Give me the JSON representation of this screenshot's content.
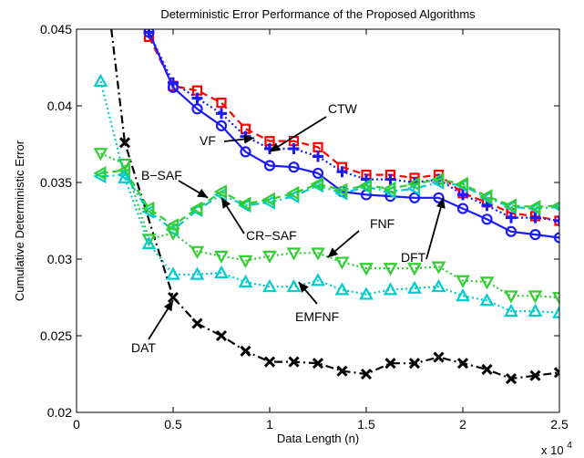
{
  "chart_data": {
    "type": "line",
    "title": "Deterministic Error Performance of the Proposed Algorithms",
    "xlabel": "Data Length (n)",
    "ylabel": "Cumulative Deterministic Error",
    "x_multiplier_label": "x 10",
    "x_multiplier_exponent": "4",
    "xlim": [
      0,
      2.5
    ],
    "ylim": [
      0.02,
      0.045
    ],
    "xticks": [
      0,
      0.5,
      1,
      1.5,
      2,
      2.5
    ],
    "xtick_labels": [
      "0",
      "0.5",
      "1",
      "1.5",
      "2",
      "2.5"
    ],
    "yticks": [
      0.02,
      0.025,
      0.03,
      0.035,
      0.04,
      0.045
    ],
    "ytick_labels": [
      "0.02",
      "0.025",
      "0.03",
      "0.035",
      "0.04",
      "0.045"
    ],
    "grid": false,
    "legend": "none",
    "series": [
      {
        "name": "DAT",
        "color": "#000000",
        "linestyle": "dashdot",
        "marker": "x",
        "x": [
          0.25,
          0.5,
          0.625,
          0.75,
          0.875,
          1.0,
          1.125,
          1.25,
          1.375,
          1.5,
          1.625,
          1.75,
          1.875,
          2.0,
          2.125,
          2.25,
          2.375,
          2.5
        ],
        "y": [
          0.0376,
          0.0275,
          0.0258,
          0.025,
          0.024,
          0.0233,
          0.0233,
          0.0232,
          0.0227,
          0.0225,
          0.0232,
          0.0232,
          0.0236,
          0.0232,
          0.0228,
          0.0222,
          0.0224,
          0.0226
        ],
        "extra_x": [
          0.18
        ],
        "extra_y": [
          0.045
        ]
      },
      {
        "name": "CTW",
        "color": "#ff0000",
        "linestyle": "dashed",
        "marker": "square",
        "x": [
          0.375,
          0.5,
          0.625,
          0.75,
          0.875,
          1.0,
          1.125,
          1.25,
          1.375,
          1.5,
          1.625,
          1.75,
          1.875,
          2.0,
          2.125,
          2.25,
          2.375,
          2.5
        ],
        "y": [
          0.0445,
          0.0413,
          0.041,
          0.0402,
          0.0385,
          0.0377,
          0.0377,
          0.0373,
          0.036,
          0.0355,
          0.0355,
          0.0353,
          0.0355,
          0.0343,
          0.0337,
          0.033,
          0.0328,
          0.0325
        ]
      },
      {
        "name": "VF",
        "color": "#1a1aff",
        "linestyle": "dotted",
        "marker": "plus",
        "x": [
          0.375,
          0.5,
          0.625,
          0.75,
          0.875,
          1.0,
          1.125,
          1.25,
          1.375,
          1.5,
          1.625,
          1.75,
          1.875,
          2.0,
          2.125,
          2.25,
          2.375,
          2.5
        ],
        "y": [
          0.0448,
          0.0415,
          0.0405,
          0.0395,
          0.038,
          0.0372,
          0.0372,
          0.0367,
          0.0357,
          0.0352,
          0.0352,
          0.035,
          0.0352,
          0.0342,
          0.0335,
          0.0327,
          0.0327,
          0.0325
        ]
      },
      {
        "name": "DFT",
        "color": "#1a1aff",
        "linestyle": "solid",
        "marker": "circle",
        "x": [
          0.375,
          0.5,
          0.625,
          0.75,
          0.875,
          1.0,
          1.125,
          1.25,
          1.375,
          1.5,
          1.625,
          1.75,
          1.875,
          2.0,
          2.125,
          2.25,
          2.375,
          2.5
        ],
        "y": [
          0.0448,
          0.0412,
          0.0398,
          0.0387,
          0.037,
          0.0361,
          0.036,
          0.0356,
          0.0344,
          0.0342,
          0.0341,
          0.034,
          0.034,
          0.0333,
          0.0326,
          0.0318,
          0.0316,
          0.0314
        ]
      },
      {
        "name": "CR-SAF",
        "color": "#00cccc",
        "linestyle": "dashdot",
        "marker": "triangle-left",
        "x": [
          0.125,
          0.25,
          0.375,
          0.5,
          0.625,
          0.75,
          0.875,
          1.0,
          1.125,
          1.25,
          1.375,
          1.5,
          1.625,
          1.75,
          1.875,
          2.0,
          2.125,
          2.25,
          2.375,
          2.5
        ],
        "y": [
          0.0354,
          0.0355,
          0.0331,
          0.0319,
          0.0332,
          0.0342,
          0.0335,
          0.0337,
          0.0341,
          0.0348,
          0.0343,
          0.0347,
          0.0344,
          0.0346,
          0.035,
          0.0348,
          0.034,
          0.0334,
          0.0333,
          0.0334
        ]
      },
      {
        "name": "B-SAF",
        "color": "#33cc33",
        "linestyle": "dashed",
        "marker": "triangle-left",
        "x": [
          0.125,
          0.25,
          0.375,
          0.5,
          0.625,
          0.75,
          0.875,
          1.0,
          1.125,
          1.25,
          1.375,
          1.5,
          1.625,
          1.75,
          1.875,
          2.0,
          2.125,
          2.25,
          2.375,
          2.5
        ],
        "y": [
          0.0356,
          0.0358,
          0.0333,
          0.0322,
          0.0333,
          0.0344,
          0.0336,
          0.0339,
          0.0343,
          0.0349,
          0.0345,
          0.0348,
          0.0346,
          0.0349,
          0.0352,
          0.0349,
          0.0341,
          0.0335,
          0.0334,
          0.0335
        ]
      },
      {
        "name": "FNF",
        "color": "#33cc33",
        "linestyle": "dotted",
        "marker": "triangle-down",
        "x": [
          0.125,
          0.25,
          0.375,
          0.5,
          0.625,
          0.75,
          0.875,
          1.0,
          1.125,
          1.25,
          1.375,
          1.5,
          1.625,
          1.75,
          1.875,
          2.0,
          2.125,
          2.25,
          2.375,
          2.5
        ],
        "y": [
          0.0369,
          0.0362,
          0.0313,
          0.0317,
          0.0305,
          0.0302,
          0.0299,
          0.0302,
          0.0304,
          0.0304,
          0.0298,
          0.0294,
          0.0294,
          0.0294,
          0.0295,
          0.0286,
          0.0285,
          0.0276,
          0.0276,
          0.0275
        ]
      },
      {
        "name": "EMFNF",
        "color": "#00cccc",
        "linestyle": "dotted",
        "marker": "triangle-up",
        "x": [
          0.125,
          0.25,
          0.375,
          0.5,
          0.625,
          0.75,
          0.875,
          1.0,
          1.125,
          1.25,
          1.375,
          1.5,
          1.625,
          1.75,
          1.875,
          2.0,
          2.125,
          2.25,
          2.375,
          2.5
        ],
        "y": [
          0.0416,
          0.0353,
          0.031,
          0.029,
          0.029,
          0.0291,
          0.0285,
          0.0282,
          0.0282,
          0.0286,
          0.028,
          0.0277,
          0.028,
          0.0281,
          0.0282,
          0.0276,
          0.0273,
          0.0266,
          0.0266,
          0.0265
        ]
      }
    ],
    "annotations": [
      {
        "text": "CTW",
        "arrow_to": [
          1.0,
          0.037
        ]
      },
      {
        "text": "VF",
        "arrow_to": [
          0.92,
          0.0379
        ]
      },
      {
        "text": "B−SAF",
        "arrow_to": [
          0.68,
          0.034
        ]
      },
      {
        "text": "CR−SAF",
        "arrow_to": [
          0.75,
          0.034
        ]
      },
      {
        "text": "FNF",
        "arrow_to": [
          1.3,
          0.0301
        ]
      },
      {
        "text": "DFT",
        "arrow_to": [
          1.9,
          0.034
        ]
      },
      {
        "text": "EMFNF",
        "arrow_to": [
          1.15,
          0.0285
        ]
      },
      {
        "text": "DAT",
        "arrow_to": [
          0.5,
          0.0273
        ]
      }
    ]
  }
}
